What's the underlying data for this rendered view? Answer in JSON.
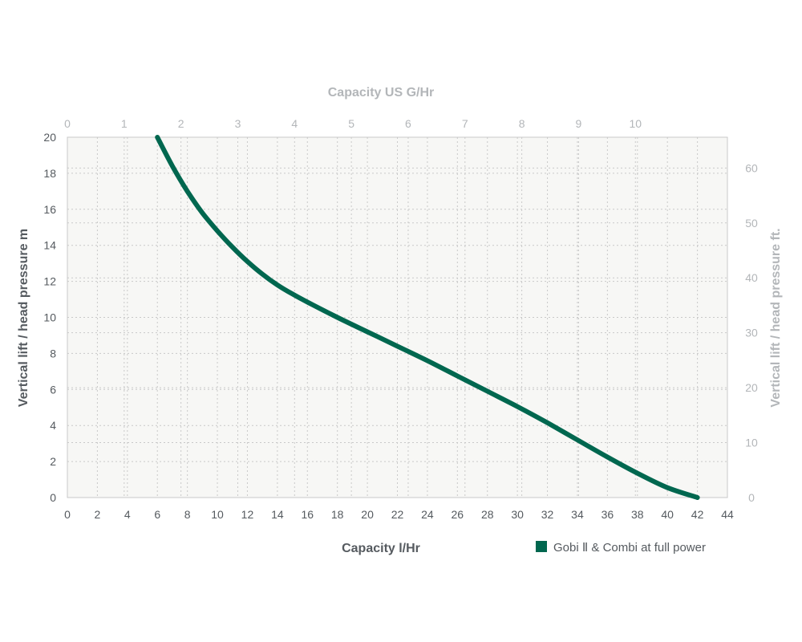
{
  "chart_data": {
    "type": "line",
    "x_label": "Capacity l/Hr",
    "y_label": "Vertical lift / head pressure m",
    "x2_label": "Capacity US G/Hr",
    "y2_label": "Vertical lift / head pressure ft.",
    "xlim": [
      0,
      44
    ],
    "ylim": [
      0,
      20
    ],
    "x2lim": [
      0,
      11.62
    ],
    "y2lim": [
      0,
      65.6
    ],
    "x_ticks": [
      "0",
      "2",
      "4",
      "6",
      "8",
      "10",
      "12",
      "14",
      "16",
      "18",
      "20",
      "22",
      "24",
      "26",
      "28",
      "30",
      "32",
      "34",
      "36",
      "38",
      "40",
      "42",
      "44"
    ],
    "y_ticks": [
      "0",
      "2",
      "4",
      "6",
      "8",
      "10",
      "12",
      "14",
      "16",
      "18",
      "20"
    ],
    "x2_ticks": [
      "0",
      "1",
      "2",
      "3",
      "4",
      "5",
      "6",
      "7",
      "8",
      "9",
      "10"
    ],
    "y2_ticks": [
      "0",
      "10",
      "20",
      "30",
      "40",
      "50",
      "60"
    ],
    "grid": true,
    "legend_position": "bottom-right",
    "colors": {
      "series": "#00674f",
      "plot_bg": "#f7f7f5",
      "grid": "#c9c9c9",
      "primary_text": "#555a5f",
      "secondary_text": "#b3b6b9"
    },
    "series": [
      {
        "name": "Gobi Ⅱ & Combi at full power",
        "x": [
          6,
          7,
          8,
          9,
          10,
          11,
          12,
          13,
          14,
          15,
          16,
          18,
          20,
          22,
          24,
          26,
          28,
          30,
          32,
          34,
          36,
          38,
          40,
          42
        ],
        "y": [
          20,
          18.4,
          17.0,
          15.8,
          14.8,
          13.9,
          13.1,
          12.4,
          11.8,
          11.3,
          10.85,
          10.0,
          9.2,
          8.4,
          7.6,
          6.75,
          5.9,
          5.05,
          4.15,
          3.2,
          2.25,
          1.35,
          0.55,
          0
        ]
      }
    ]
  }
}
